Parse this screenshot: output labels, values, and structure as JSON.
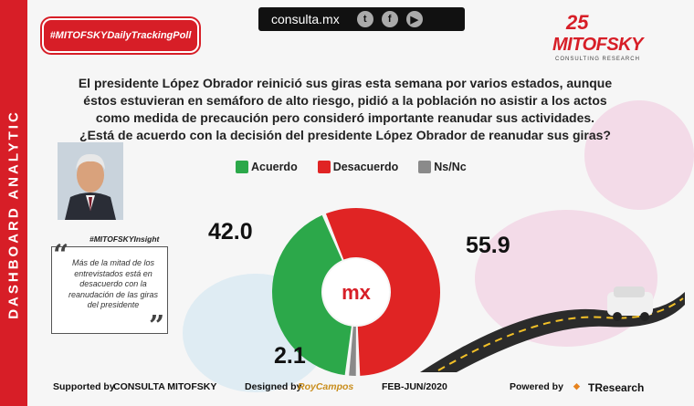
{
  "sidebar": {
    "label": "DASHBOARD ANALYTIC"
  },
  "header": {
    "hashtag": "#MITOFSKYDailyTrackingPoll",
    "site": "consulta.mx",
    "social": [
      "twitter-icon",
      "facebook-icon",
      "youtube-icon"
    ],
    "logo": {
      "anniversary": "25",
      "name": "MITOFSKY",
      "tagline": "CONSULTING RESEARCH"
    }
  },
  "question": {
    "context": "El presidente López Obrador reinició sus giras esta semana por varios estados, aunque éstos estuvieran en semáforo de alto riesgo, pidió a la población no asistir a los actos como medida de precaución pero consideró importante reanudar sus actividades.",
    "prompt": "¿Está de acuerdo con la decisión del presidente López Obrador de reanudar sus giras?"
  },
  "insight": {
    "tag": "#MITOFSKYInsight",
    "text": "Más de la mitad de los entrevistados está en desacuerdo con la reanudación de las giras del presidente"
  },
  "chart_data": {
    "type": "pie",
    "categories": [
      "Acuerdo",
      "Desacuerdo",
      "Ns/Nc"
    ],
    "values": [
      42.0,
      55.9,
      2.1
    ],
    "labels": [
      "42.0",
      "55.9",
      "2.1"
    ],
    "colors": [
      "#2ca84a",
      "#e02424",
      "#8a8a8a"
    ],
    "style": "donut",
    "legend_position": "top"
  },
  "footer": {
    "supported_label": "Supported by",
    "supported_value": "CONSULTA  MITOFSKY",
    "designed_label": "Designed by",
    "designed_value": "RoyCampos",
    "date": "FEB-JUN/2020",
    "powered_label": "Powered by",
    "powered_value": "TResearch"
  }
}
